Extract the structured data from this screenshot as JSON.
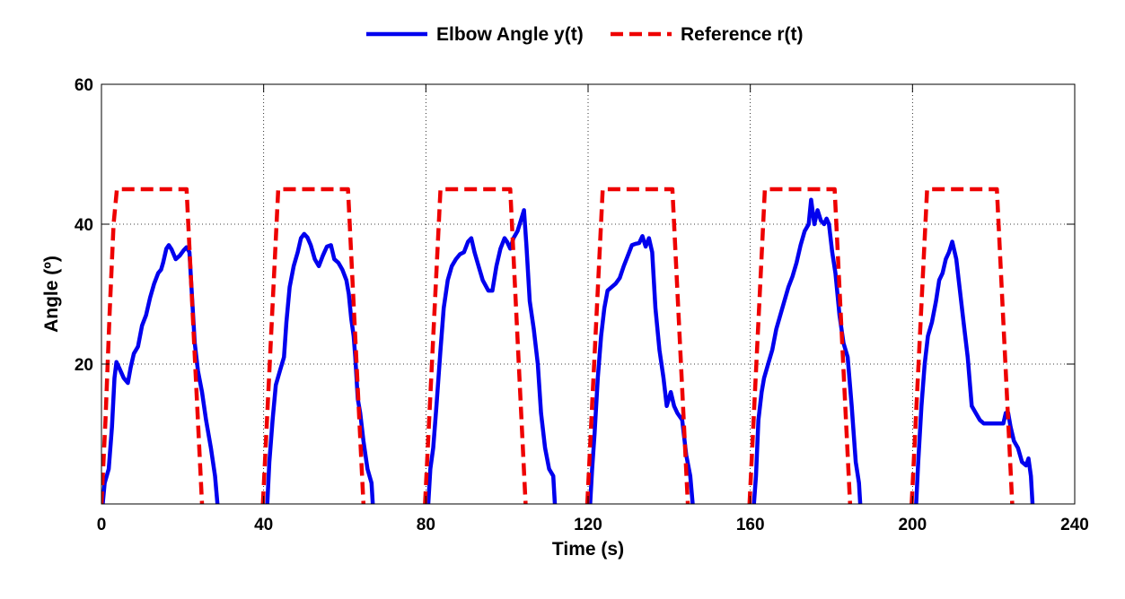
{
  "chart_data": {
    "type": "line",
    "title": "",
    "xlabel": "Time (s)",
    "ylabel": "Angle (º)",
    "xlim": [
      0,
      240
    ],
    "ylim": [
      0,
      60
    ],
    "xticks": [
      0,
      40,
      80,
      120,
      160,
      200,
      240
    ],
    "yticks": [
      20,
      40,
      60
    ],
    "grid": true,
    "legend_position": "top-center",
    "series": [
      {
        "name": "Elbow Angle y(t)",
        "color": "#0000ee",
        "style": "solid",
        "segments": [
          [
            [
              0.3,
              0
            ],
            [
              0.8,
              3
            ],
            [
              1.8,
              5
            ],
            [
              2.6,
              11
            ],
            [
              3.2,
              18
            ],
            [
              3.7,
              20.3
            ],
            [
              4.5,
              19.3
            ],
            [
              5.5,
              18
            ],
            [
              6.5,
              17.3
            ],
            [
              7.2,
              19.5
            ],
            [
              8,
              21.5
            ],
            [
              9,
              22.5
            ],
            [
              10,
              25.5
            ],
            [
              11,
              27
            ],
            [
              12,
              29.5
            ],
            [
              13,
              31.5
            ],
            [
              14,
              33
            ],
            [
              14.7,
              33.5
            ],
            [
              15.2,
              34.5
            ],
            [
              16,
              36.5
            ],
            [
              16.6,
              37
            ],
            [
              17.3,
              36.4
            ],
            [
              18.3,
              35
            ],
            [
              19.3,
              35.5
            ],
            [
              20.3,
              36.3
            ],
            [
              21,
              36.7
            ],
            [
              21.7,
              36
            ],
            [
              22.3,
              30
            ],
            [
              23,
              23
            ],
            [
              23.8,
              19
            ],
            [
              24.8,
              16
            ],
            [
              25.8,
              12
            ],
            [
              27,
              8
            ],
            [
              28,
              4
            ],
            [
              28.6,
              0
            ]
          ],
          [
            [
              40.9,
              0
            ],
            [
              41.4,
              6
            ],
            [
              42.2,
              12
            ],
            [
              43,
              17
            ],
            [
              44,
              19
            ],
            [
              45,
              21
            ],
            [
              45.6,
              26
            ],
            [
              46.4,
              31
            ],
            [
              47.4,
              34
            ],
            [
              48.4,
              36
            ],
            [
              49.2,
              38
            ],
            [
              50,
              38.6
            ],
            [
              50.8,
              38.1
            ],
            [
              51.6,
              37
            ],
            [
              52.6,
              35
            ],
            [
              53.6,
              34
            ],
            [
              54.6,
              35.5
            ],
            [
              55.6,
              36.8
            ],
            [
              56.6,
              37
            ],
            [
              57.4,
              35
            ],
            [
              58.4,
              34.5
            ],
            [
              59.4,
              33.5
            ],
            [
              60.4,
              32
            ],
            [
              61,
              30
            ],
            [
              61.6,
              26.5
            ],
            [
              62.2,
              24
            ],
            [
              62.6,
              21
            ],
            [
              63.2,
              15
            ],
            [
              63.8,
              13
            ],
            [
              64.6,
              9
            ],
            [
              65.6,
              5
            ],
            [
              66.6,
              3
            ],
            [
              66.9,
              0
            ]
          ],
          [
            [
              80.6,
              0
            ],
            [
              81.1,
              5
            ],
            [
              81.8,
              8
            ],
            [
              82.6,
              14
            ],
            [
              83.6,
              22
            ],
            [
              84.4,
              28
            ],
            [
              85.4,
              32
            ],
            [
              86.4,
              34
            ],
            [
              87.4,
              35
            ],
            [
              88.4,
              35.7
            ],
            [
              89.4,
              36
            ],
            [
              90.4,
              37.5
            ],
            [
              91.2,
              38
            ],
            [
              92,
              36
            ],
            [
              93,
              34
            ],
            [
              94,
              32
            ],
            [
              95.4,
              30.5
            ],
            [
              96.4,
              30.5
            ],
            [
              97.4,
              34
            ],
            [
              98.4,
              36.5
            ],
            [
              99.4,
              38
            ],
            [
              100,
              37.5
            ],
            [
              100.8,
              36.5
            ],
            [
              101.6,
              38
            ],
            [
              102.6,
              39
            ],
            [
              103.4,
              40.5
            ],
            [
              104.2,
              42
            ],
            [
              104.8,
              37
            ],
            [
              105.6,
              29
            ],
            [
              106.6,
              25
            ],
            [
              107.6,
              20
            ],
            [
              108.4,
              13
            ],
            [
              109.4,
              8
            ],
            [
              110.4,
              5
            ],
            [
              111.4,
              4
            ],
            [
              111.8,
              0
            ]
          ],
          [
            [
              120.5,
              0
            ],
            [
              121,
              5
            ],
            [
              121.6,
              10
            ],
            [
              122.4,
              18
            ],
            [
              123.2,
              24
            ],
            [
              124,
              28
            ],
            [
              124.8,
              30.5
            ],
            [
              125.8,
              31
            ],
            [
              126.8,
              31.5
            ],
            [
              127.8,
              32.3
            ],
            [
              128.8,
              34
            ],
            [
              129.8,
              35.5
            ],
            [
              130.8,
              37
            ],
            [
              131.8,
              37.2
            ],
            [
              132.6,
              37.3
            ],
            [
              133.4,
              38.3
            ],
            [
              134.2,
              36.8
            ],
            [
              135,
              38
            ],
            [
              135.8,
              36
            ],
            [
              136.6,
              28
            ],
            [
              137.6,
              22
            ],
            [
              138.6,
              18
            ],
            [
              139.4,
              14
            ],
            [
              140.4,
              16
            ],
            [
              141.2,
              14
            ],
            [
              142,
              13
            ],
            [
              143.2,
              12
            ],
            [
              144.2,
              7
            ],
            [
              145.2,
              4
            ],
            [
              145.8,
              0
            ]
          ],
          [
            [
              160.9,
              0
            ],
            [
              161.4,
              4
            ],
            [
              162,
              12
            ],
            [
              162.8,
              16
            ],
            [
              163.4,
              18
            ],
            [
              164.4,
              20
            ],
            [
              165.4,
              22
            ],
            [
              166.4,
              25
            ],
            [
              167.4,
              27
            ],
            [
              168.4,
              29
            ],
            [
              169.4,
              31
            ],
            [
              170.4,
              32.5
            ],
            [
              171.4,
              34.5
            ],
            [
              172.4,
              37
            ],
            [
              173.4,
              39
            ],
            [
              174.4,
              40
            ],
            [
              175,
              43.5
            ],
            [
              175.8,
              40
            ],
            [
              176.6,
              42
            ],
            [
              177.4,
              40.5
            ],
            [
              178.2,
              40
            ],
            [
              178.8,
              40.8
            ],
            [
              179.4,
              40
            ],
            [
              180.2,
              36
            ],
            [
              181,
              33
            ],
            [
              182,
              27
            ],
            [
              183,
              23
            ],
            [
              184,
              21
            ],
            [
              185,
              14
            ],
            [
              186,
              6
            ],
            [
              186.8,
              3
            ],
            [
              187.1,
              0
            ]
          ],
          [
            [
              200.9,
              0
            ],
            [
              201.4,
              6
            ],
            [
              202.2,
              14
            ],
            [
              203,
              20
            ],
            [
              203.8,
              24
            ],
            [
              204.8,
              26
            ],
            [
              205.8,
              29
            ],
            [
              206.6,
              32
            ],
            [
              207.4,
              33
            ],
            [
              208.2,
              35
            ],
            [
              209,
              36
            ],
            [
              209.8,
              37.5
            ],
            [
              210.8,
              35
            ],
            [
              211.6,
              31
            ],
            [
              212.6,
              26
            ],
            [
              213.6,
              21
            ],
            [
              214.6,
              14
            ],
            [
              215.6,
              13
            ],
            [
              216.6,
              12
            ],
            [
              217.6,
              11.5
            ],
            [
              218.6,
              11.5
            ],
            [
              219.6,
              11.5
            ],
            [
              220.6,
              11.5
            ],
            [
              221.6,
              11.5
            ],
            [
              222.4,
              11.5
            ],
            [
              223,
              13
            ],
            [
              223.6,
              13
            ],
            [
              224.2,
              11
            ],
            [
              225,
              9
            ],
            [
              226,
              8
            ],
            [
              227,
              6
            ],
            [
              228,
              5.5
            ],
            [
              228.6,
              6.5
            ],
            [
              229.2,
              4
            ],
            [
              229.6,
              0
            ]
          ]
        ]
      },
      {
        "name": "Reference r(t)",
        "color": "#ee0000",
        "style": "dashed",
        "segments": [
          [
            [
              0,
              0
            ],
            [
              1,
              12
            ],
            [
              2,
              27
            ],
            [
              3,
              40
            ],
            [
              3.8,
              45
            ],
            [
              21,
              45
            ],
            [
              24.8,
              0
            ]
          ],
          [
            [
              39.8,
              0
            ],
            [
              43.6,
              45
            ],
            [
              60.8,
              45
            ],
            [
              64.6,
              0
            ]
          ],
          [
            [
              79.8,
              0
            ],
            [
              83.6,
              45
            ],
            [
              100.8,
              45
            ],
            [
              104.6,
              0
            ]
          ],
          [
            [
              119.8,
              0
            ],
            [
              123.6,
              45
            ],
            [
              140.8,
              45
            ],
            [
              144.6,
              0
            ]
          ],
          [
            [
              159.8,
              0
            ],
            [
              163.6,
              45
            ],
            [
              180.8,
              45
            ],
            [
              184.6,
              0
            ]
          ],
          [
            [
              199.8,
              0
            ],
            [
              203.6,
              45
            ],
            [
              220.8,
              45
            ],
            [
              224.6,
              0
            ]
          ]
        ]
      }
    ]
  }
}
